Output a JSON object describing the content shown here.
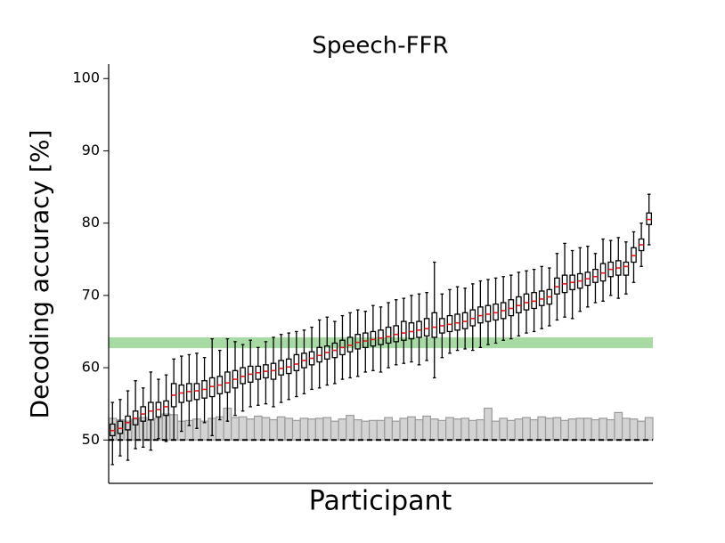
{
  "chart_data": {
    "type": "boxplot",
    "title": "Speech-FFR",
    "xlabel": "Participant",
    "ylabel": "Decoding accuracy [%]",
    "ylim": [
      44,
      102
    ],
    "yticks": [
      50,
      60,
      70,
      80,
      90,
      100
    ],
    "box_color": "#000000",
    "median_color": "#e8161b",
    "band": {
      "range": [
        62.7,
        64.2
      ],
      "color": "#a8dba4"
    },
    "reference_line": 50,
    "chance": {
      "color": "#d3d3d3",
      "edge_color": "#9a9a9a",
      "values": [
        53.0,
        52.8,
        52.6,
        52.9,
        53.1,
        52.7,
        53.0,
        53.6,
        53.5,
        52.6,
        52.7,
        52.9,
        52.6,
        53.0,
        53.2,
        54.4,
        53.1,
        53.2,
        52.9,
        53.3,
        53.1,
        52.8,
        53.2,
        53.0,
        52.7,
        53.0,
        52.9,
        53.0,
        53.1,
        52.6,
        52.9,
        53.4,
        52.8,
        52.6,
        52.7,
        52.7,
        53.1,
        52.6,
        53.0,
        53.2,
        52.8,
        53.3,
        52.9,
        52.7,
        53.1,
        52.9,
        53.0,
        52.7,
        52.8,
        54.4,
        52.6,
        53.0,
        52.7,
        52.9,
        53.1,
        52.8,
        53.2,
        53.0,
        53.1,
        52.7,
        52.9,
        53.0,
        53.0,
        52.8,
        53.0,
        52.8,
        53.8,
        53.0,
        52.9,
        52.6,
        53.1
      ]
    },
    "boxes": [
      [
        46.6,
        50.6,
        51.3,
        52.2,
        55.2
      ],
      [
        47.8,
        50.9,
        51.6,
        52.6,
        55.6
      ],
      [
        47.2,
        51.4,
        52.4,
        53.3,
        56.8
      ],
      [
        48.8,
        52.1,
        53.0,
        54.0,
        58.2
      ],
      [
        49.0,
        52.6,
        53.6,
        54.6,
        57.2
      ],
      [
        48.6,
        52.8,
        54.0,
        55.2,
        59.4
      ],
      [
        50.2,
        53.2,
        54.2,
        55.2,
        58.4
      ],
      [
        49.8,
        53.4,
        54.6,
        55.4,
        59.0
      ],
      [
        50.0,
        54.6,
        56.2,
        57.8,
        61.2
      ],
      [
        51.2,
        55.2,
        56.5,
        57.6,
        61.6
      ],
      [
        52.0,
        55.4,
        56.7,
        57.8,
        61.8
      ],
      [
        51.6,
        55.6,
        56.8,
        57.8,
        62.0
      ],
      [
        52.4,
        55.8,
        57.0,
        58.2,
        61.4
      ],
      [
        50.6,
        56.0,
        57.4,
        58.6,
        64.0
      ],
      [
        52.8,
        56.4,
        57.6,
        58.8,
        62.4
      ],
      [
        52.6,
        56.6,
        57.9,
        59.4,
        64.0
      ],
      [
        53.4,
        57.2,
        58.4,
        59.6,
        63.6
      ],
      [
        54.0,
        57.8,
        58.8,
        60.0,
        63.2
      ],
      [
        54.6,
        58.0,
        59.1,
        60.2,
        63.8
      ],
      [
        54.8,
        58.4,
        59.3,
        60.2,
        62.8
      ],
      [
        55.0,
        58.6,
        59.5,
        60.4,
        63.6
      ],
      [
        54.6,
        58.4,
        59.6,
        60.6,
        64.2
      ],
      [
        55.2,
        59.0,
        59.9,
        61.0,
        64.6
      ],
      [
        55.6,
        59.2,
        60.1,
        61.2,
        64.8
      ],
      [
        56.0,
        59.6,
        60.5,
        61.8,
        65.0
      ],
      [
        56.4,
        60.0,
        61.0,
        62.0,
        65.2
      ],
      [
        57.0,
        60.4,
        61.3,
        62.2,
        65.6
      ],
      [
        57.2,
        60.8,
        61.7,
        62.8,
        66.6
      ],
      [
        57.6,
        61.2,
        62.1,
        63.0,
        67.0
      ],
      [
        57.8,
        61.4,
        62.4,
        63.4,
        66.4
      ],
      [
        58.4,
        61.8,
        62.8,
        63.8,
        67.2
      ],
      [
        58.6,
        62.2,
        63.1,
        64.2,
        67.6
      ],
      [
        58.8,
        62.6,
        63.5,
        64.6,
        68.0
      ],
      [
        59.4,
        62.8,
        63.7,
        64.8,
        67.8
      ],
      [
        59.6,
        63.0,
        63.9,
        65.0,
        68.6
      ],
      [
        59.4,
        63.2,
        64.1,
        65.2,
        68.4
      ],
      [
        60.0,
        63.4,
        64.3,
        65.6,
        69.0
      ],
      [
        60.4,
        63.6,
        64.6,
        65.8,
        69.4
      ],
      [
        60.6,
        63.8,
        64.8,
        66.4,
        69.6
      ],
      [
        60.8,
        64.0,
        65.0,
        66.2,
        70.0
      ],
      [
        60.4,
        64.2,
        65.2,
        66.4,
        70.2
      ],
      [
        61.0,
        64.4,
        65.4,
        66.8,
        70.4
      ],
      [
        58.6,
        64.2,
        65.6,
        67.6,
        74.6
      ],
      [
        61.4,
        64.8,
        65.8,
        66.8,
        70.2
      ],
      [
        62.0,
        65.0,
        66.0,
        67.2,
        70.8
      ],
      [
        62.4,
        65.2,
        66.2,
        67.4,
        71.2
      ],
      [
        62.6,
        65.4,
        66.4,
        67.6,
        71.0
      ],
      [
        62.4,
        65.8,
        66.8,
        68.0,
        71.6
      ],
      [
        62.8,
        66.2,
        67.2,
        68.4,
        72.0
      ],
      [
        63.2,
        66.4,
        67.4,
        68.6,
        72.2
      ],
      [
        63.4,
        66.6,
        67.6,
        68.8,
        72.4
      ],
      [
        63.8,
        66.8,
        67.9,
        69.0,
        72.6
      ],
      [
        64.0,
        67.2,
        68.2,
        69.4,
        72.8
      ],
      [
        64.4,
        67.6,
        68.6,
        69.8,
        73.2
      ],
      [
        64.8,
        68.0,
        69.0,
        70.2,
        73.4
      ],
      [
        65.0,
        68.2,
        69.2,
        70.4,
        73.6
      ],
      [
        65.4,
        68.6,
        69.5,
        70.6,
        74.0
      ],
      [
        65.8,
        68.8,
        69.8,
        70.8,
        73.8
      ],
      [
        66.6,
        70.2,
        71.2,
        72.4,
        75.8
      ],
      [
        67.0,
        70.4,
        71.6,
        72.8,
        77.2
      ],
      [
        66.8,
        70.8,
        71.8,
        72.8,
        76.2
      ],
      [
        67.8,
        71.0,
        72.0,
        73.0,
        76.6
      ],
      [
        68.4,
        71.4,
        72.3,
        73.2,
        76.8
      ],
      [
        69.0,
        71.8,
        72.6,
        73.6,
        75.8
      ],
      [
        69.2,
        72.0,
        73.1,
        74.4,
        77.8
      ],
      [
        70.0,
        72.6,
        73.6,
        74.6,
        77.6
      ],
      [
        69.6,
        72.8,
        73.8,
        74.8,
        78.0
      ],
      [
        70.2,
        72.8,
        74.0,
        74.6,
        77.4
      ],
      [
        71.8,
        74.6,
        75.5,
        76.6,
        78.8
      ],
      [
        74.0,
        76.2,
        77.0,
        77.8,
        80.0
      ],
      [
        77.0,
        79.8,
        80.5,
        81.4,
        84.0
      ]
    ]
  }
}
